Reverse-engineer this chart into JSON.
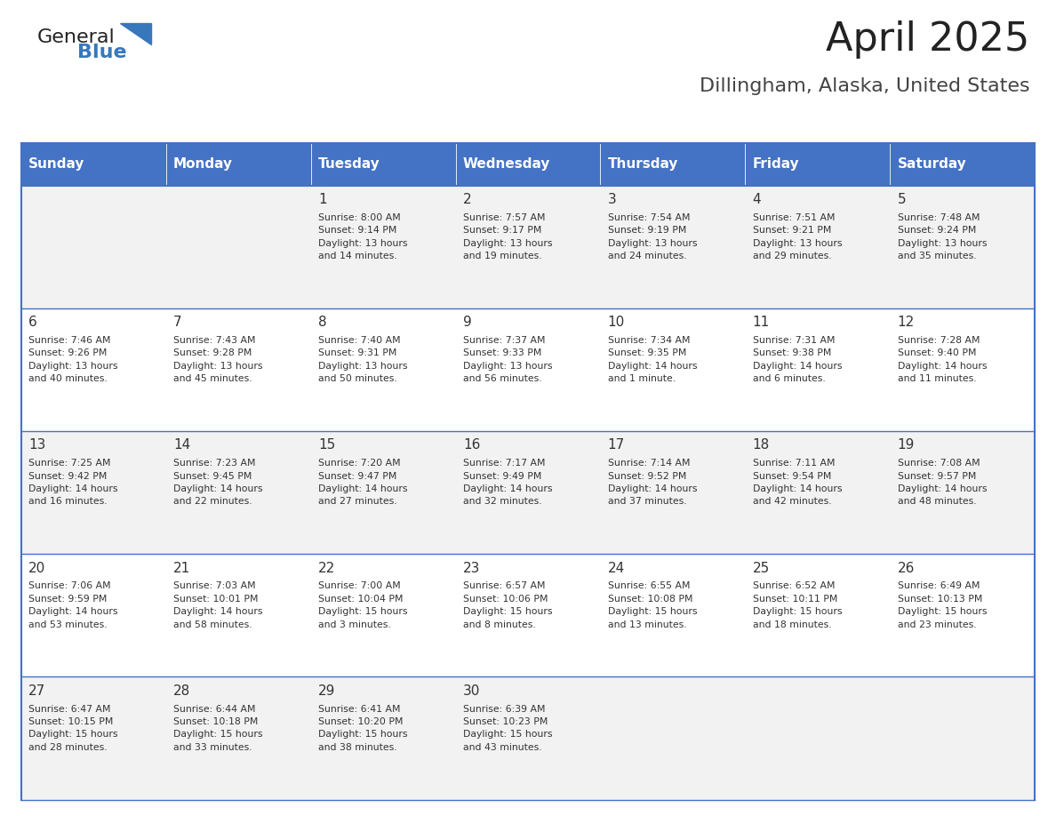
{
  "title": "April 2025",
  "subtitle": "Dillingham, Alaska, United States",
  "header_bg_color": "#4472C4",
  "header_text_color": "#FFFFFF",
  "odd_row_bg": "#F2F2F2",
  "even_row_bg": "#FFFFFF",
  "day_names": [
    "Sunday",
    "Monday",
    "Tuesday",
    "Wednesday",
    "Thursday",
    "Friday",
    "Saturday"
  ],
  "logo_color": "#3777BC",
  "logo_text_color": "#222222",
  "grid_line_color": "#4472C4",
  "cell_text_color": "#333333",
  "title_color": "#222222",
  "subtitle_color": "#444444",
  "weeks": [
    [
      {
        "day": "",
        "info": ""
      },
      {
        "day": "",
        "info": ""
      },
      {
        "day": "1",
        "info": "Sunrise: 8:00 AM\nSunset: 9:14 PM\nDaylight: 13 hours\nand 14 minutes."
      },
      {
        "day": "2",
        "info": "Sunrise: 7:57 AM\nSunset: 9:17 PM\nDaylight: 13 hours\nand 19 minutes."
      },
      {
        "day": "3",
        "info": "Sunrise: 7:54 AM\nSunset: 9:19 PM\nDaylight: 13 hours\nand 24 minutes."
      },
      {
        "day": "4",
        "info": "Sunrise: 7:51 AM\nSunset: 9:21 PM\nDaylight: 13 hours\nand 29 minutes."
      },
      {
        "day": "5",
        "info": "Sunrise: 7:48 AM\nSunset: 9:24 PM\nDaylight: 13 hours\nand 35 minutes."
      }
    ],
    [
      {
        "day": "6",
        "info": "Sunrise: 7:46 AM\nSunset: 9:26 PM\nDaylight: 13 hours\nand 40 minutes."
      },
      {
        "day": "7",
        "info": "Sunrise: 7:43 AM\nSunset: 9:28 PM\nDaylight: 13 hours\nand 45 minutes."
      },
      {
        "day": "8",
        "info": "Sunrise: 7:40 AM\nSunset: 9:31 PM\nDaylight: 13 hours\nand 50 minutes."
      },
      {
        "day": "9",
        "info": "Sunrise: 7:37 AM\nSunset: 9:33 PM\nDaylight: 13 hours\nand 56 minutes."
      },
      {
        "day": "10",
        "info": "Sunrise: 7:34 AM\nSunset: 9:35 PM\nDaylight: 14 hours\nand 1 minute."
      },
      {
        "day": "11",
        "info": "Sunrise: 7:31 AM\nSunset: 9:38 PM\nDaylight: 14 hours\nand 6 minutes."
      },
      {
        "day": "12",
        "info": "Sunrise: 7:28 AM\nSunset: 9:40 PM\nDaylight: 14 hours\nand 11 minutes."
      }
    ],
    [
      {
        "day": "13",
        "info": "Sunrise: 7:25 AM\nSunset: 9:42 PM\nDaylight: 14 hours\nand 16 minutes."
      },
      {
        "day": "14",
        "info": "Sunrise: 7:23 AM\nSunset: 9:45 PM\nDaylight: 14 hours\nand 22 minutes."
      },
      {
        "day": "15",
        "info": "Sunrise: 7:20 AM\nSunset: 9:47 PM\nDaylight: 14 hours\nand 27 minutes."
      },
      {
        "day": "16",
        "info": "Sunrise: 7:17 AM\nSunset: 9:49 PM\nDaylight: 14 hours\nand 32 minutes."
      },
      {
        "day": "17",
        "info": "Sunrise: 7:14 AM\nSunset: 9:52 PM\nDaylight: 14 hours\nand 37 minutes."
      },
      {
        "day": "18",
        "info": "Sunrise: 7:11 AM\nSunset: 9:54 PM\nDaylight: 14 hours\nand 42 minutes."
      },
      {
        "day": "19",
        "info": "Sunrise: 7:08 AM\nSunset: 9:57 PM\nDaylight: 14 hours\nand 48 minutes."
      }
    ],
    [
      {
        "day": "20",
        "info": "Sunrise: 7:06 AM\nSunset: 9:59 PM\nDaylight: 14 hours\nand 53 minutes."
      },
      {
        "day": "21",
        "info": "Sunrise: 7:03 AM\nSunset: 10:01 PM\nDaylight: 14 hours\nand 58 minutes."
      },
      {
        "day": "22",
        "info": "Sunrise: 7:00 AM\nSunset: 10:04 PM\nDaylight: 15 hours\nand 3 minutes."
      },
      {
        "day": "23",
        "info": "Sunrise: 6:57 AM\nSunset: 10:06 PM\nDaylight: 15 hours\nand 8 minutes."
      },
      {
        "day": "24",
        "info": "Sunrise: 6:55 AM\nSunset: 10:08 PM\nDaylight: 15 hours\nand 13 minutes."
      },
      {
        "day": "25",
        "info": "Sunrise: 6:52 AM\nSunset: 10:11 PM\nDaylight: 15 hours\nand 18 minutes."
      },
      {
        "day": "26",
        "info": "Sunrise: 6:49 AM\nSunset: 10:13 PM\nDaylight: 15 hours\nand 23 minutes."
      }
    ],
    [
      {
        "day": "27",
        "info": "Sunrise: 6:47 AM\nSunset: 10:15 PM\nDaylight: 15 hours\nand 28 minutes."
      },
      {
        "day": "28",
        "info": "Sunrise: 6:44 AM\nSunset: 10:18 PM\nDaylight: 15 hours\nand 33 minutes."
      },
      {
        "day": "29",
        "info": "Sunrise: 6:41 AM\nSunset: 10:20 PM\nDaylight: 15 hours\nand 38 minutes."
      },
      {
        "day": "30",
        "info": "Sunrise: 6:39 AM\nSunset: 10:23 PM\nDaylight: 15 hours\nand 43 minutes."
      },
      {
        "day": "",
        "info": ""
      },
      {
        "day": "",
        "info": ""
      },
      {
        "day": "",
        "info": ""
      }
    ]
  ]
}
